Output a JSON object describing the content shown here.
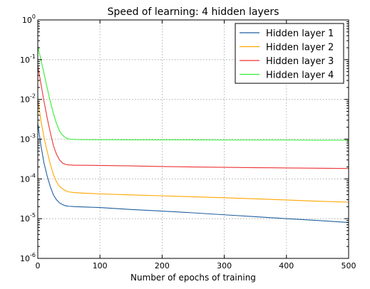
{
  "chart_data": {
    "type": "line",
    "title": "Speed of learning: 4 hidden layers",
    "xlabel": "Number of epochs of training",
    "ylabel": "",
    "xlim": [
      0,
      500
    ],
    "ylim": [
      1e-06,
      1
    ],
    "yscale": "log",
    "grid": true,
    "legend_position": "top-right",
    "x_ticks": [
      0,
      100,
      200,
      300,
      400,
      500
    ],
    "y_ticks": [
      {
        "base": "10",
        "exp": "0"
      },
      {
        "base": "10",
        "exp": "-1"
      },
      {
        "base": "10",
        "exp": "-2"
      },
      {
        "base": "10",
        "exp": "-3"
      },
      {
        "base": "10",
        "exp": "-4"
      },
      {
        "base": "10",
        "exp": "-5"
      },
      {
        "base": "10",
        "exp": "-6"
      }
    ],
    "series": [
      {
        "name": "Hidden layer 1",
        "color": "#1f5fa0",
        "x": [
          0,
          5,
          10,
          15,
          20,
          25,
          30,
          35,
          40,
          45,
          50,
          60,
          80,
          100,
          150,
          200,
          250,
          300,
          350,
          400,
          450,
          500
        ],
        "y": [
          0.0025,
          0.0007,
          0.00025,
          0.00012,
          6.5e-05,
          4e-05,
          3e-05,
          2.5e-05,
          2.25e-05,
          2.1e-05,
          2.05e-05,
          2e-05,
          1.95e-05,
          1.9e-05,
          1.7e-05,
          1.55e-05,
          1.4e-05,
          1.25e-05,
          1.12e-05,
          1e-05,
          9e-06,
          8e-06
        ]
      },
      {
        "name": "Hidden layer 2",
        "color": "#ffa500",
        "x": [
          0,
          5,
          10,
          15,
          20,
          25,
          30,
          35,
          40,
          45,
          50,
          60,
          80,
          100,
          150,
          200,
          250,
          300,
          350,
          400,
          450,
          500
        ],
        "y": [
          0.01,
          0.003,
          0.0011,
          0.0005,
          0.00024,
          0.00013,
          8.5e-05,
          6.5e-05,
          5.6e-05,
          5e-05,
          4.7e-05,
          4.5e-05,
          4.35e-05,
          4.2e-05,
          3.95e-05,
          3.75e-05,
          3.55e-05,
          3.35e-05,
          3.15e-05,
          2.95e-05,
          2.75e-05,
          2.6e-05
        ]
      },
      {
        "name": "Hidden layer 3",
        "color": "#ee3333",
        "x": [
          0,
          5,
          10,
          15,
          20,
          25,
          30,
          35,
          40,
          45,
          50,
          60,
          80,
          100,
          150,
          200,
          250,
          300,
          350,
          400,
          450,
          500
        ],
        "y": [
          0.07,
          0.025,
          0.009,
          0.0035,
          0.0015,
          0.0007,
          0.00042,
          0.0003,
          0.00025,
          0.00023,
          0.000225,
          0.00022,
          0.00022,
          0.000218,
          0.000212,
          0.000205,
          0.0002,
          0.000196,
          0.000192,
          0.000189,
          0.000186,
          0.000183
        ]
      },
      {
        "name": "Hidden layer 4",
        "color": "#33ee33",
        "x": [
          0,
          5,
          10,
          15,
          20,
          25,
          30,
          35,
          40,
          45,
          50,
          60,
          80,
          100,
          150,
          200,
          250,
          300,
          350,
          400,
          450,
          500
        ],
        "y": [
          0.22,
          0.1,
          0.045,
          0.02,
          0.009,
          0.0045,
          0.0025,
          0.0016,
          0.00125,
          0.00108,
          0.001,
          0.00098,
          0.00097,
          0.00097,
          0.00096,
          0.00096,
          0.00096,
          0.00095,
          0.00095,
          0.00095,
          0.00094,
          0.00094
        ]
      }
    ]
  }
}
